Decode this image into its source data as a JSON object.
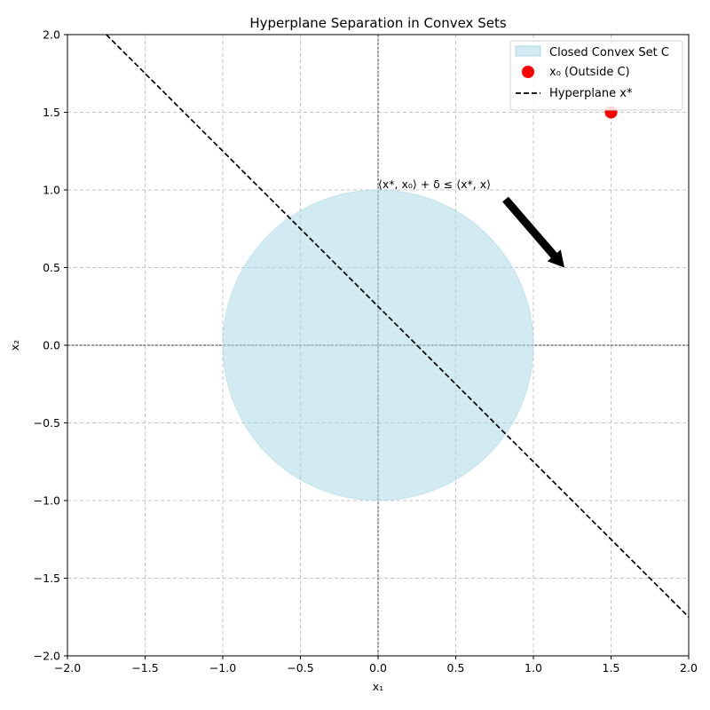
{
  "chart_data": {
    "type": "scatter",
    "title": "Hyperplane Separation in Convex Sets",
    "xlabel": "x₁",
    "ylabel": "x₂",
    "xlim": [
      -2.0,
      2.0
    ],
    "ylim": [
      -2.0,
      2.0
    ],
    "xticks": [
      -2.0,
      -1.5,
      -1.0,
      -0.5,
      0.0,
      0.5,
      1.0,
      1.5,
      2.0
    ],
    "yticks": [
      -2.0,
      -1.5,
      -1.0,
      -0.5,
      0.0,
      0.5,
      1.0,
      1.5,
      2.0
    ],
    "xtick_labels": [
      "−2.0",
      "−1.5",
      "−1.0",
      "−0.5",
      "0.0",
      "0.5",
      "1.0",
      "1.5",
      "2.0"
    ],
    "ytick_labels": [
      "−2.0",
      "−1.5",
      "−1.0",
      "−0.5",
      "0.0",
      "0.5",
      "1.0",
      "1.5",
      "2.0"
    ],
    "grid": true,
    "legend_position": "top-right",
    "convex_set": {
      "name": "Closed Convex Set C",
      "center": [
        0,
        0
      ],
      "radius": 1.0,
      "color": "#add8e6"
    },
    "point": {
      "name": "x₀ (Outside C)",
      "x": 1.5,
      "y": 1.5,
      "color": "#ff0000"
    },
    "hyperplane": {
      "name": "Hyperplane x*",
      "x": [
        -1.75,
        2.0
      ],
      "y": [
        2.0,
        -1.75
      ],
      "color": "#000000"
    },
    "annotation": {
      "text": "⟨x*, x₀⟩ + δ ≤ ⟨x*, x⟩",
      "text_x": 0.0,
      "text_y": 1.0,
      "arrow_from": [
        0.82,
        0.94
      ],
      "arrow_to": [
        1.2,
        0.5
      ]
    }
  }
}
